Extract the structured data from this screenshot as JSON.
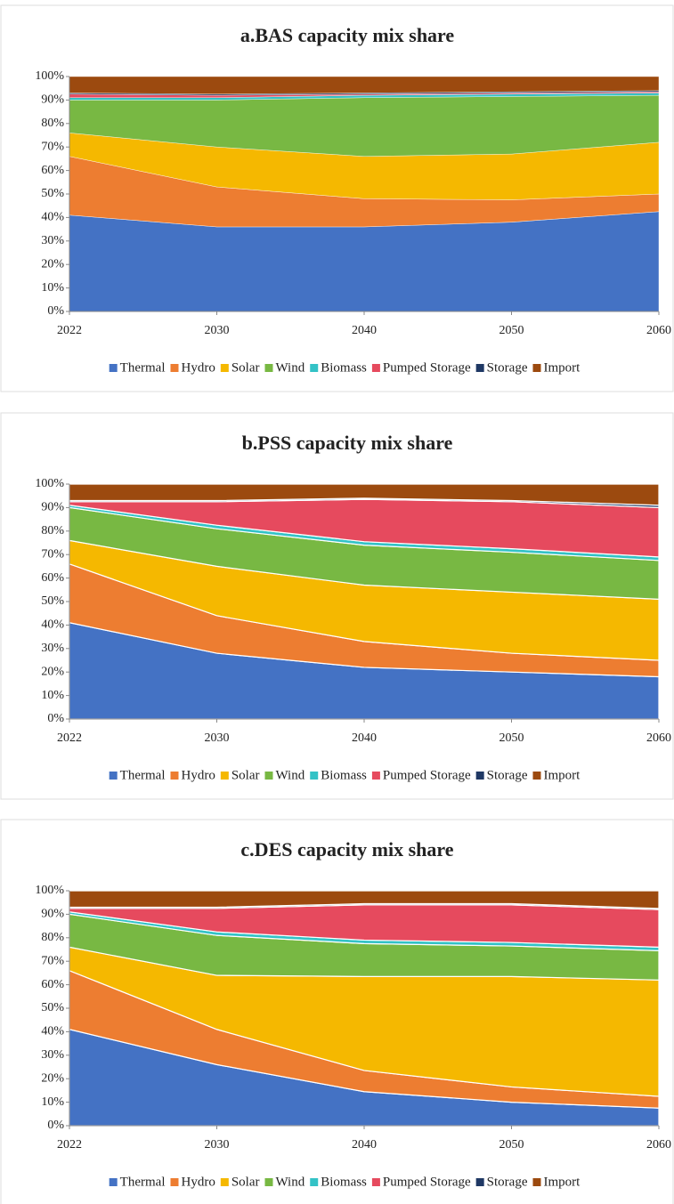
{
  "chart_data": [
    {
      "type": "area",
      "title": "a.BAS capacity mix share",
      "categories": [
        "2022",
        "2030",
        "2040",
        "2050",
        "2060"
      ],
      "series": [
        {
          "name": "Thermal",
          "color": "#4472c4",
          "values": [
            41,
            36,
            36,
            38,
            42.5
          ]
        },
        {
          "name": "Hydro",
          "color": "#ed7d31",
          "values": [
            25,
            17,
            12,
            9.5,
            7.5
          ]
        },
        {
          "name": "Solar",
          "color": "#f5b800",
          "values": [
            10,
            17,
            18,
            19.5,
            22
          ]
        },
        {
          "name": "Wind",
          "color": "#78b843",
          "values": [
            14,
            20,
            25,
            24.5,
            20
          ]
        },
        {
          "name": "Biomass",
          "color": "#33c2c6",
          "values": [
            1,
            1,
            1,
            1,
            1
          ]
        },
        {
          "name": "Pumped Storage",
          "color": "#e64a5e",
          "values": [
            1.5,
            1,
            0.5,
            0.5,
            0.5
          ]
        },
        {
          "name": "Storage",
          "color": "#1f3864",
          "values": [
            0.5,
            0.5,
            0.5,
            0.5,
            0.5
          ]
        },
        {
          "name": "Import",
          "color": "#9c4a0f",
          "values": [
            7,
            7.5,
            7,
            6.5,
            6
          ]
        }
      ],
      "ylim": [
        0,
        100
      ],
      "yticks": [
        {
          "value": 0,
          "label": "0%"
        },
        {
          "value": 10,
          "label": "10%"
        },
        {
          "value": 20,
          "label": "20%"
        },
        {
          "value": 30,
          "label": "30%"
        },
        {
          "value": 40,
          "label": "40%"
        },
        {
          "value": 50,
          "label": "50%"
        },
        {
          "value": 60,
          "label": "60%"
        },
        {
          "value": 70,
          "label": "70%"
        },
        {
          "value": 80,
          "label": "80%"
        },
        {
          "value": 90,
          "label": "90%"
        },
        {
          "value": 100,
          "label": "100%"
        }
      ],
      "stacked": true,
      "legend": "bottom"
    },
    {
      "type": "area",
      "title": "b.PSS capacity mix share",
      "categories": [
        "2022",
        "2030",
        "2040",
        "2050",
        "2060"
      ],
      "series": [
        {
          "name": "Thermal",
          "color": "#4472c4",
          "values": [
            41,
            28,
            22,
            20,
            18
          ]
        },
        {
          "name": "Hydro",
          "color": "#ed7d31",
          "values": [
            25,
            16,
            11,
            8,
            7
          ]
        },
        {
          "name": "Solar",
          "color": "#f5b800",
          "values": [
            10,
            21,
            24,
            26,
            26
          ]
        },
        {
          "name": "Wind",
          "color": "#78b843",
          "values": [
            14,
            16,
            17,
            17,
            16.5
          ]
        },
        {
          "name": "Biomass",
          "color": "#33c2c6",
          "values": [
            1,
            1.5,
            1.5,
            1.5,
            1.5
          ]
        },
        {
          "name": "Pumped Storage",
          "color": "#e64a5e",
          "values": [
            1.5,
            10,
            18,
            20,
            21
          ]
        },
        {
          "name": "Storage",
          "color": "#1f3864",
          "values": [
            0.5,
            0.5,
            0.5,
            0.5,
            1
          ]
        },
        {
          "name": "Import",
          "color": "#9c4a0f",
          "values": [
            7,
            7,
            6,
            7,
            9
          ]
        }
      ],
      "ylim": [
        0,
        100
      ],
      "yticks": [
        {
          "value": 0,
          "label": "0%"
        },
        {
          "value": 10,
          "label": "10%"
        },
        {
          "value": 20,
          "label": "20%"
        },
        {
          "value": 30,
          "label": "30%"
        },
        {
          "value": 40,
          "label": "40%"
        },
        {
          "value": 50,
          "label": "50%"
        },
        {
          "value": 60,
          "label": "60%"
        },
        {
          "value": 70,
          "label": "70%"
        },
        {
          "value": 80,
          "label": "80%"
        },
        {
          "value": 90,
          "label": "90%"
        },
        {
          "value": 100,
          "label": "100%"
        }
      ],
      "stacked": true,
      "legend": "bottom"
    },
    {
      "type": "area",
      "title": "c.DES capacity mix share",
      "categories": [
        "2022",
        "2030",
        "2040",
        "2050",
        "2060"
      ],
      "series": [
        {
          "name": "Thermal",
          "color": "#4472c4",
          "values": [
            41,
            26,
            14.5,
            10,
            7.5
          ]
        },
        {
          "name": "Hydro",
          "color": "#ed7d31",
          "values": [
            25,
            15,
            9,
            6.5,
            5
          ]
        },
        {
          "name": "Solar",
          "color": "#f5b800",
          "values": [
            10,
            23,
            40,
            47,
            49.5
          ]
        },
        {
          "name": "Wind",
          "color": "#78b843",
          "values": [
            14,
            17,
            14,
            13,
            12.5
          ]
        },
        {
          "name": "Biomass",
          "color": "#33c2c6",
          "values": [
            1,
            1.5,
            1.5,
            1.5,
            1.5
          ]
        },
        {
          "name": "Pumped Storage",
          "color": "#e64a5e",
          "values": [
            1.5,
            10,
            15,
            16,
            16
          ]
        },
        {
          "name": "Storage",
          "color": "#1f3864",
          "values": [
            0.5,
            0.5,
            0.5,
            0.5,
            0.5
          ]
        },
        {
          "name": "Import",
          "color": "#9c4a0f",
          "values": [
            7,
            7,
            5.5,
            5.5,
            7.5
          ]
        }
      ],
      "ylim": [
        0,
        100
      ],
      "yticks": [
        {
          "value": 0,
          "label": "0%"
        },
        {
          "value": 10,
          "label": "10%"
        },
        {
          "value": 20,
          "label": "20%"
        },
        {
          "value": 30,
          "label": "30%"
        },
        {
          "value": 40,
          "label": "40%"
        },
        {
          "value": 50,
          "label": "50%"
        },
        {
          "value": 60,
          "label": "60%"
        },
        {
          "value": 70,
          "label": "70%"
        },
        {
          "value": 80,
          "label": "80%"
        },
        {
          "value": 90,
          "label": "90%"
        },
        {
          "value": 100,
          "label": "100%"
        }
      ],
      "stacked": true,
      "legend": "bottom"
    }
  ]
}
